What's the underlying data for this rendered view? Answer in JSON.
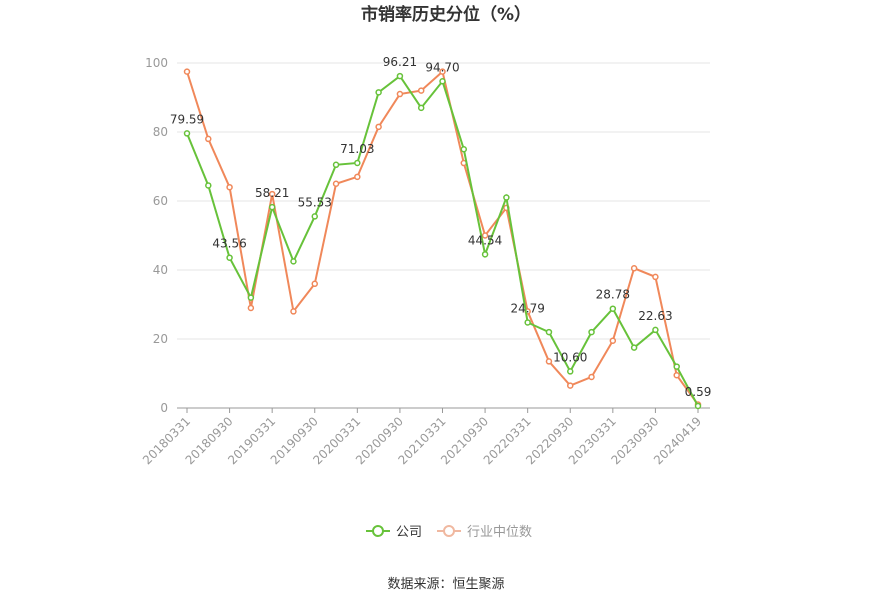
{
  "chart_data": {
    "type": "line",
    "title": "市销率历史分位（%）",
    "xlabel": "",
    "ylabel": "",
    "ylim": [
      0,
      100
    ],
    "yticks": [
      0,
      20,
      40,
      60,
      80,
      100
    ],
    "grid": true,
    "legend_position": "bottom",
    "x": [
      "20180331",
      "20180630",
      "20180930",
      "20181231",
      "20190331",
      "20190630",
      "20190930",
      "20191231",
      "20200331",
      "20200630",
      "20200930",
      "20201231",
      "20210331",
      "20210630",
      "20210930",
      "20211231",
      "20220331",
      "20220630",
      "20220930",
      "20221231",
      "20230331",
      "20230630",
      "20230930",
      "20231231",
      "20240419"
    ],
    "x_tick_labels": [
      "20180331",
      "20180930",
      "20190331",
      "20190930",
      "20200331",
      "20200930",
      "20210331",
      "20210930",
      "20220331",
      "20220930",
      "20230331",
      "20230930",
      "20240419"
    ],
    "series": [
      {
        "name": "公司",
        "color": "#67c23a",
        "values": [
          79.59,
          64.5,
          43.56,
          32.0,
          58.21,
          42.5,
          55.53,
          70.5,
          71.03,
          91.5,
          96.21,
          87.0,
          94.7,
          75.0,
          44.54,
          61.0,
          24.79,
          22.0,
          10.6,
          22.0,
          28.78,
          17.5,
          22.63,
          12.0,
          0.59
        ],
        "labels": {
          "0": "79.59",
          "2": "43.56",
          "4": "58.21",
          "6": "55.53",
          "8": "71.03",
          "10": "96.21",
          "12": "94.70",
          "14": "44.54",
          "16": "24.79",
          "18": "10.60",
          "20": "28.78",
          "22": "22.63",
          "24": "0.59"
        }
      },
      {
        "name": "行业中位数",
        "color": "#f0885a",
        "values": [
          97.5,
          78.0,
          64.0,
          29.0,
          62.0,
          28.0,
          36.0,
          65.0,
          67.0,
          81.5,
          91.0,
          92.0,
          97.5,
          71.0,
          50.0,
          58.0,
          28.0,
          13.5,
          6.5,
          9.0,
          19.5,
          40.5,
          38.0,
          9.5,
          1.0
        ]
      }
    ]
  },
  "footer": {
    "source_text": "数据来源：恒生聚源"
  }
}
